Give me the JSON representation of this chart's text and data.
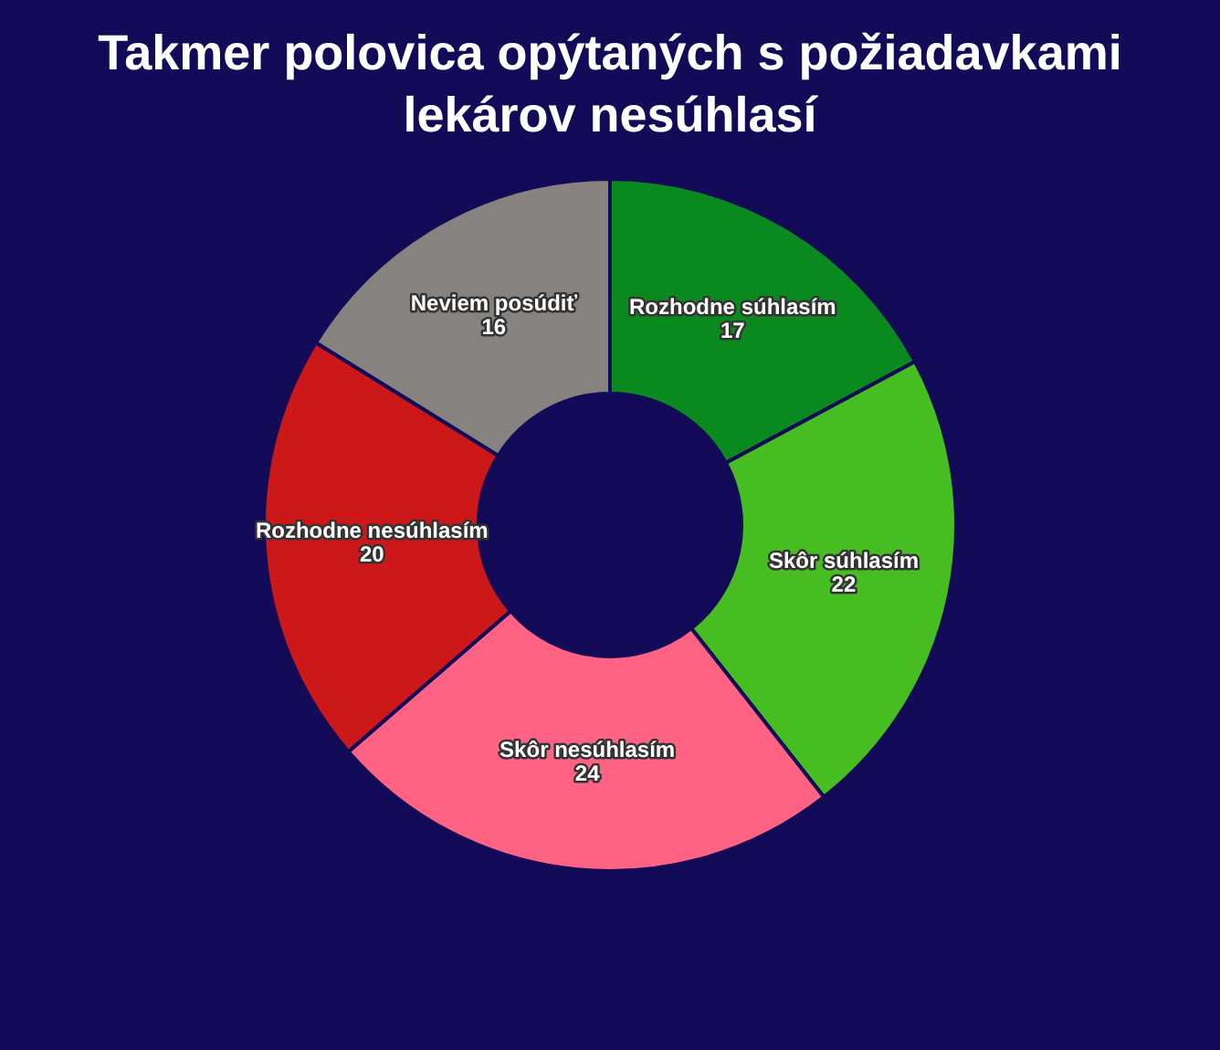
{
  "chart_data": {
    "type": "donut",
    "title": "Takmer polovica opýtaných s požiadavkami lekárov nesúhlasí",
    "categories": [
      "Rozhodne súhlasím",
      "Skôr súhlasím",
      "Skôr nesúhlasím",
      "Rozhodne nesúhlasím",
      "Neviem posúdiť"
    ],
    "values": [
      17,
      22,
      24,
      20,
      16
    ],
    "colors": [
      "#0a8a1e",
      "#46be22",
      "#ff6384",
      "#cc1818",
      "#858280"
    ],
    "data_labels": true,
    "legend": false
  }
}
